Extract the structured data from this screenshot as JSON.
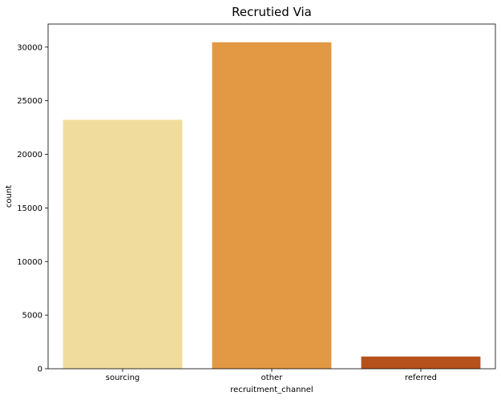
{
  "chart_data": {
    "type": "bar",
    "title": "Recrutied Via",
    "xlabel": "recruitment_channel",
    "ylabel": "count",
    "categories": [
      "sourcing",
      "other",
      "referred"
    ],
    "values": [
      23220,
      30450,
      1140
    ],
    "colors": [
      "#f0dc9c",
      "#e39843",
      "#b6511c"
    ],
    "ylim": [
      0,
      32150
    ],
    "yticks": [
      0,
      5000,
      10000,
      15000,
      20000,
      25000,
      30000
    ],
    "grid": false
  }
}
